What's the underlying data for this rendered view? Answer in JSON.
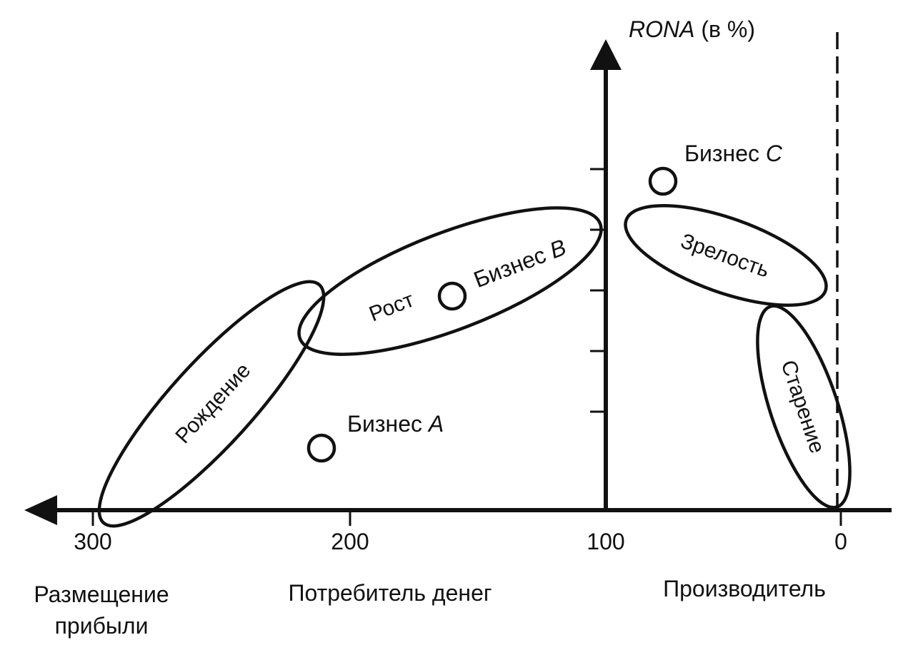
{
  "axis": {
    "y_label_italic": "RONA",
    "y_label_rest": " (в %)",
    "x_ticks": [
      "300",
      "200",
      "100",
      "0"
    ]
  },
  "regions": {
    "birth": "Рождение",
    "growth": "Рост",
    "maturity": "Зрелость",
    "aging": "Старение"
  },
  "businesses": {
    "a": {
      "prefix": "Бизнес ",
      "letter": "A"
    },
    "b": {
      "prefix": "Бизнес ",
      "letter": "B"
    },
    "c": {
      "prefix": "Бизнес ",
      "letter": "C"
    }
  },
  "zones": {
    "profit_line1": "Размещение",
    "profit_line2": "прибыли",
    "consumer": "Потребитель денег",
    "producer": "Производитель"
  },
  "colors": {
    "ink": "#111111",
    "paper": "#ffffff"
  }
}
